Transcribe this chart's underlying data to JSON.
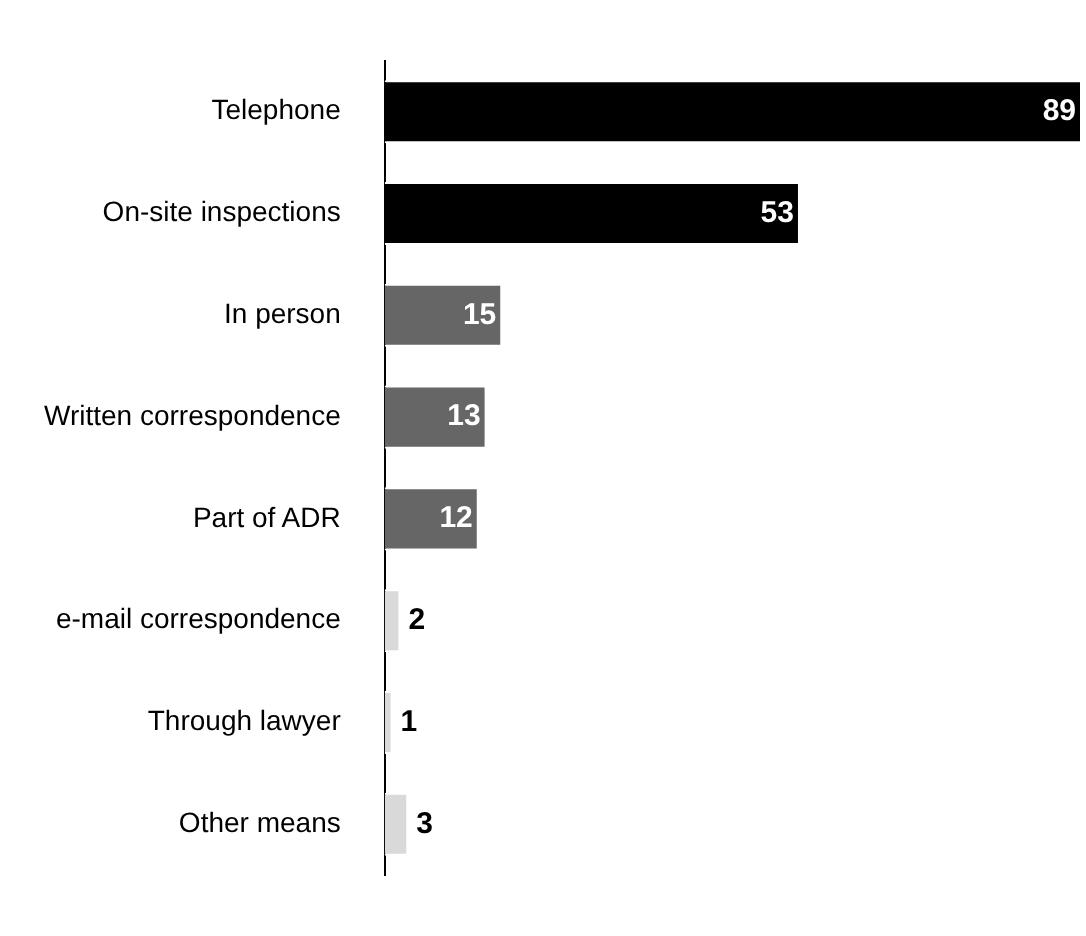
{
  "chart_data": {
    "type": "bar",
    "orientation": "horizontal",
    "data_labels": true,
    "legend": false,
    "grid": false,
    "categories": [
      "Telephone",
      "On-site inspections",
      "In person",
      "Written correspondence",
      "Part of ADR",
      "e-mail correspondence",
      "Through lawyer",
      "Other means"
    ],
    "values": [
      89,
      53,
      15,
      13,
      12,
      2,
      1,
      3
    ],
    "colors": [
      "#000000",
      "#000000",
      "#666666",
      "#666666",
      "#666666",
      "#d9d9d9",
      "#d9d9d9",
      "#d9d9d9"
    ]
  }
}
